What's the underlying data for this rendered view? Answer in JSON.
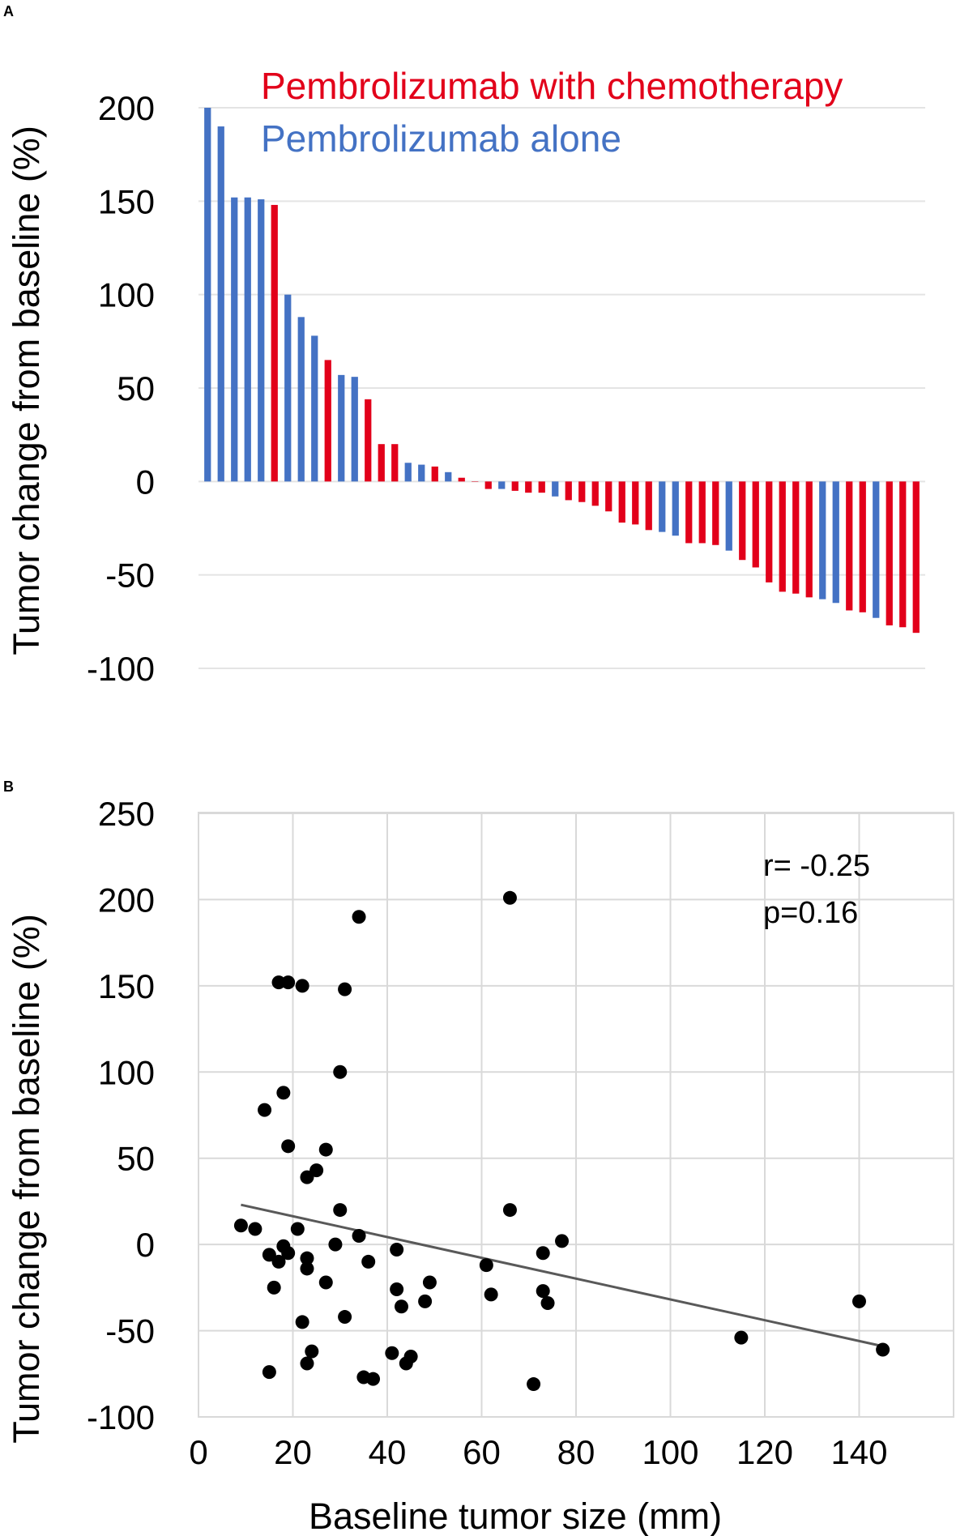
{
  "panels": [
    "A",
    "B"
  ],
  "chart_data": [
    {
      "type": "bar",
      "panel": "A",
      "title": "",
      "xlabel": "",
      "ylabel": "Tumor change from baseline (%)",
      "ylim": [
        -100,
        200
      ],
      "yticks": [
        200,
        150,
        100,
        50,
        0,
        -50,
        -100
      ],
      "grid": true,
      "legend": [
        {
          "name": "Pembrolizumab with chemotherapy",
          "color": "#e2001a"
        },
        {
          "name": "Pembrolizumab alone",
          "color": "#4472c4"
        }
      ],
      "series": [
        {
          "name": "Pembrolizumab with chemotherapy",
          "color": "#e2001a"
        },
        {
          "name": "Pembrolizumab alone",
          "color": "#4472c4"
        }
      ],
      "bars": [
        {
          "value": 200,
          "series": 1
        },
        {
          "value": 190,
          "series": 1
        },
        {
          "value": 152,
          "series": 1
        },
        {
          "value": 152,
          "series": 1
        },
        {
          "value": 151,
          "series": 1
        },
        {
          "value": 148,
          "series": 0
        },
        {
          "value": 100,
          "series": 1
        },
        {
          "value": 88,
          "series": 1
        },
        {
          "value": 78,
          "series": 1
        },
        {
          "value": 65,
          "series": 0
        },
        {
          "value": 57,
          "series": 1
        },
        {
          "value": 56,
          "series": 1
        },
        {
          "value": 44,
          "series": 0
        },
        {
          "value": 20,
          "series": 0
        },
        {
          "value": 20,
          "series": 0
        },
        {
          "value": 10,
          "series": 1
        },
        {
          "value": 9,
          "series": 1
        },
        {
          "value": 8,
          "series": 0
        },
        {
          "value": 5,
          "series": 1
        },
        {
          "value": 2,
          "series": 0
        },
        {
          "value": 0,
          "series": 0
        },
        {
          "value": -4,
          "series": 0
        },
        {
          "value": -4,
          "series": 1
        },
        {
          "value": -5,
          "series": 0
        },
        {
          "value": -6,
          "series": 0
        },
        {
          "value": -6,
          "series": 0
        },
        {
          "value": -8,
          "series": 1
        },
        {
          "value": -10,
          "series": 0
        },
        {
          "value": -11,
          "series": 0
        },
        {
          "value": -13,
          "series": 0
        },
        {
          "value": -16,
          "series": 0
        },
        {
          "value": -22,
          "series": 0
        },
        {
          "value": -23,
          "series": 0
        },
        {
          "value": -26,
          "series": 0
        },
        {
          "value": -27,
          "series": 1
        },
        {
          "value": -29,
          "series": 1
        },
        {
          "value": -33,
          "series": 0
        },
        {
          "value": -33,
          "series": 0
        },
        {
          "value": -34,
          "series": 0
        },
        {
          "value": -37,
          "series": 1
        },
        {
          "value": -42,
          "series": 0
        },
        {
          "value": -46,
          "series": 0
        },
        {
          "value": -54,
          "series": 0
        },
        {
          "value": -59,
          "series": 0
        },
        {
          "value": -60,
          "series": 0
        },
        {
          "value": -62,
          "series": 0
        },
        {
          "value": -63,
          "series": 1
        },
        {
          "value": -65,
          "series": 1
        },
        {
          "value": -69,
          "series": 0
        },
        {
          "value": -70,
          "series": 0
        },
        {
          "value": -73,
          "series": 1
        },
        {
          "value": -77,
          "series": 0
        },
        {
          "value": -78,
          "series": 0
        },
        {
          "value": -81,
          "series": 0
        }
      ]
    },
    {
      "type": "scatter",
      "panel": "B",
      "title": "",
      "xlabel": "Baseline tumor size (mm)",
      "ylabel": "Tumor change from baseline (%)",
      "xlim": [
        0,
        160
      ],
      "ylim": [
        -100,
        250
      ],
      "xticks": [
        0,
        20,
        40,
        60,
        80,
        100,
        120,
        140
      ],
      "yticks": [
        250,
        200,
        150,
        100,
        50,
        0,
        -50,
        -100
      ],
      "grid": true,
      "annotation": {
        "r": "r= -0.25",
        "p": "p=0.16"
      },
      "trendline": {
        "x": [
          9,
          145
        ],
        "y": [
          23,
          -59
        ]
      },
      "points": [
        [
          9,
          11
        ],
        [
          12,
          9
        ],
        [
          14,
          78
        ],
        [
          15,
          -6
        ],
        [
          15,
          -74
        ],
        [
          16,
          -25
        ],
        [
          17,
          152
        ],
        [
          17,
          -10
        ],
        [
          18,
          88
        ],
        [
          18,
          -1
        ],
        [
          19,
          152
        ],
        [
          19,
          57
        ],
        [
          19,
          -5
        ],
        [
          21,
          9
        ],
        [
          22,
          150
        ],
        [
          22,
          -45
        ],
        [
          23,
          -14
        ],
        [
          23,
          -8
        ],
        [
          23,
          -69
        ],
        [
          24,
          -62
        ],
        [
          23,
          39
        ],
        [
          25,
          43
        ],
        [
          27,
          55
        ],
        [
          27,
          -22
        ],
        [
          29,
          0
        ],
        [
          30,
          100
        ],
        [
          30,
          20
        ],
        [
          31,
          148
        ],
        [
          31,
          -42
        ],
        [
          34,
          190
        ],
        [
          34,
          5
        ],
        [
          35,
          -77
        ],
        [
          36,
          -10
        ],
        [
          37,
          -78
        ],
        [
          41,
          -63
        ],
        [
          42,
          -26
        ],
        [
          42,
          -3
        ],
        [
          43,
          -36
        ],
        [
          44,
          -69
        ],
        [
          45,
          -65
        ],
        [
          48,
          -33
        ],
        [
          49,
          -22
        ],
        [
          61,
          -12
        ],
        [
          62,
          -29
        ],
        [
          66,
          201
        ],
        [
          66,
          20
        ],
        [
          71,
          -81
        ],
        [
          73,
          -27
        ],
        [
          73,
          -5
        ],
        [
          74,
          -34
        ],
        [
          77,
          2
        ],
        [
          115,
          -54
        ],
        [
          140,
          -33
        ],
        [
          145,
          -61
        ]
      ]
    }
  ]
}
